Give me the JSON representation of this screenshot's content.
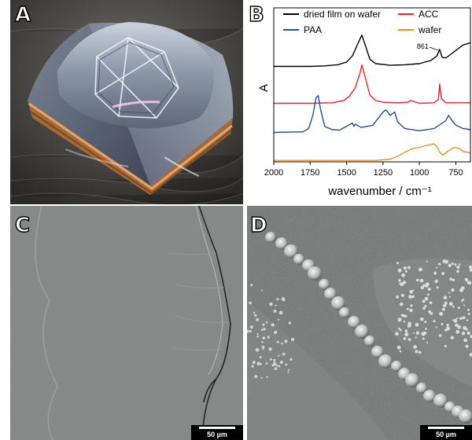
{
  "panels": {
    "a": {
      "label": "A"
    },
    "b": {
      "label": "B"
    },
    "c": {
      "label": "C",
      "scale": "50 µm"
    },
    "d": {
      "label": "D",
      "scale": "50 µm"
    }
  },
  "chart_data": {
    "type": "line",
    "xlabel": "wavenumber / cm⁻¹",
    "ylabel": "A",
    "xlim": [
      2000,
      650
    ],
    "xticks": [
      2000,
      1750,
      1500,
      1250,
      1000,
      750
    ],
    "legend_position": "top",
    "annotation": "861",
    "series": [
      {
        "name": "dried film on wafer",
        "color": "#000000",
        "x": [
          2000,
          1750,
          1650,
          1560,
          1500,
          1460,
          1420,
          1395,
          1370,
          1340,
          1300,
          1200,
          1100,
          1000,
          920,
          880,
          861,
          845,
          820,
          780,
          700,
          650
        ],
        "y": [
          0.05,
          0.05,
          0.06,
          0.08,
          0.13,
          0.24,
          0.48,
          0.62,
          0.42,
          0.18,
          0.1,
          0.07,
          0.08,
          0.1,
          0.16,
          0.24,
          0.36,
          0.22,
          0.2,
          0.28,
          0.44,
          0.48
        ]
      },
      {
        "name": "ACC",
        "color": "#e8212b",
        "x": [
          2000,
          1750,
          1600,
          1520,
          1480,
          1440,
          1410,
          1395,
          1370,
          1340,
          1300,
          1250,
          1150,
          1080,
          1060,
          1000,
          900,
          870,
          861,
          850,
          820,
          700,
          650
        ],
        "y": [
          0.05,
          0.05,
          0.06,
          0.1,
          0.18,
          0.34,
          0.58,
          0.75,
          0.5,
          0.2,
          0.1,
          0.07,
          0.06,
          0.07,
          0.1,
          0.05,
          0.06,
          0.12,
          0.4,
          0.14,
          0.06,
          0.06,
          0.06
        ]
      },
      {
        "name": "PAA",
        "color": "#1f4e9e",
        "x": [
          2000,
          1800,
          1760,
          1730,
          1710,
          1695,
          1680,
          1650,
          1600,
          1550,
          1460,
          1450,
          1440,
          1400,
          1320,
          1250,
          1230,
          1200,
          1170,
          1150,
          1100,
          1000,
          900,
          820,
          800,
          780,
          750,
          700,
          650
        ],
        "y": [
          0.05,
          0.06,
          0.12,
          0.38,
          0.68,
          0.72,
          0.48,
          0.16,
          0.1,
          0.09,
          0.22,
          0.16,
          0.2,
          0.14,
          0.18,
          0.42,
          0.46,
          0.36,
          0.42,
          0.24,
          0.12,
          0.08,
          0.12,
          0.26,
          0.36,
          0.28,
          0.18,
          0.12,
          0.1
        ]
      },
      {
        "name": "wafer",
        "color": "#f28c1c",
        "x": [
          2000,
          1750,
          1500,
          1300,
          1200,
          1150,
          1100,
          1050,
          1000,
          950,
          900,
          880,
          860,
          840,
          800,
          760,
          720,
          700,
          650
        ],
        "y": [
          0.04,
          0.04,
          0.04,
          0.04,
          0.08,
          0.16,
          0.28,
          0.38,
          0.42,
          0.48,
          0.52,
          0.44,
          0.28,
          0.2,
          0.32,
          0.42,
          0.38,
          0.3,
          0.26
        ]
      }
    ]
  }
}
